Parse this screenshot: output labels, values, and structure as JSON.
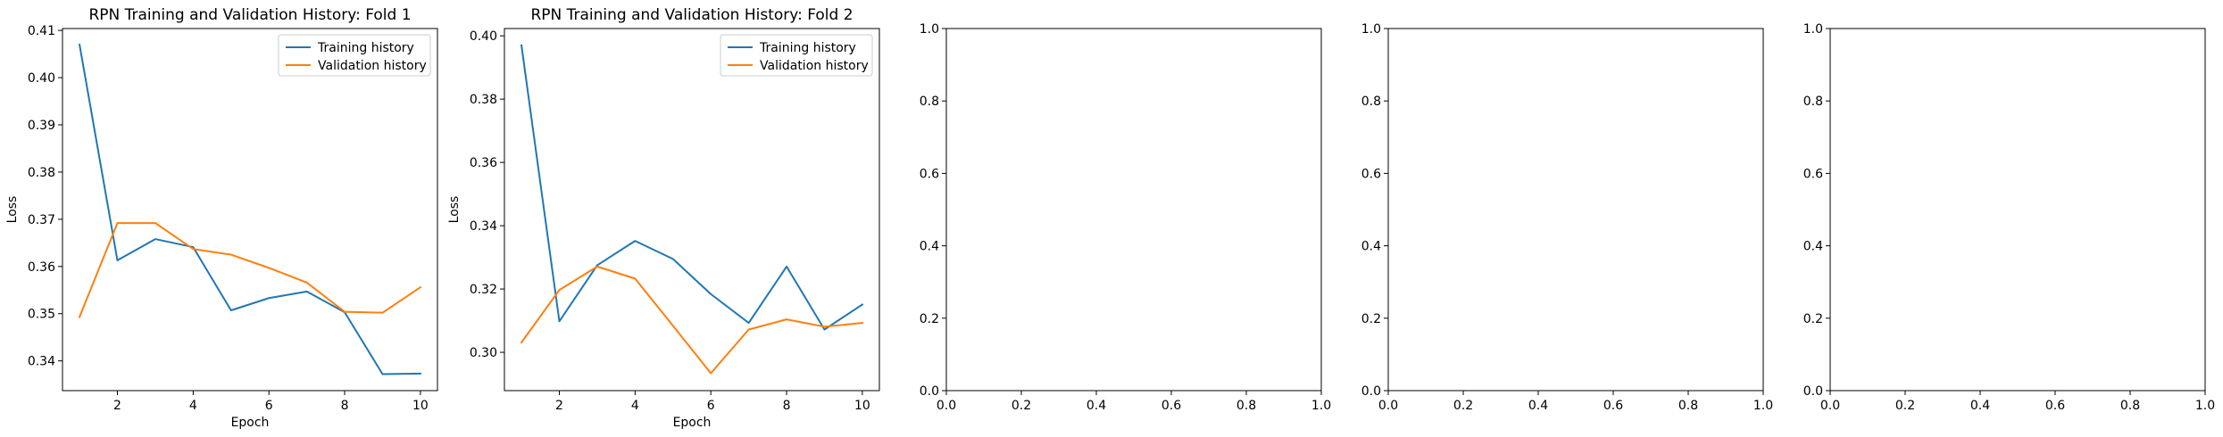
{
  "colors": {
    "training": "#1f77b4",
    "validation": "#ff7f0e"
  },
  "chart_data": [
    {
      "type": "line",
      "title": "RPN Training and Validation History: Fold 1",
      "xlabel": "Epoch",
      "ylabel": "Loss",
      "x": [
        1,
        2,
        3,
        4,
        5,
        6,
        7,
        8,
        9,
        10
      ],
      "xlim": [
        0.55,
        10.45
      ],
      "ylim": [
        0.3337,
        0.4104
      ],
      "xticks": [
        2,
        4,
        6,
        8,
        10
      ],
      "yticks": [
        0.34,
        0.35,
        0.36,
        0.37,
        0.38,
        0.39,
        0.4,
        0.41
      ],
      "ytick_labels": [
        "0.34",
        "0.35",
        "0.36",
        "0.37",
        "0.38",
        "0.39",
        "0.40",
        "0.41"
      ],
      "legend": "top-right",
      "grid": false,
      "series": [
        {
          "name": "Training history",
          "color": "#1f77b4",
          "values": [
            0.407,
            0.3613,
            0.3658,
            0.3641,
            0.3507,
            0.3533,
            0.3547,
            0.3503,
            0.3372,
            0.3373
          ]
        },
        {
          "name": "Validation history",
          "color": "#ff7f0e",
          "values": [
            0.3493,
            0.3692,
            0.3692,
            0.3637,
            0.3625,
            0.3597,
            0.3566,
            0.3504,
            0.3502,
            0.3556
          ]
        }
      ]
    },
    {
      "type": "line",
      "title": "RPN Training and Validation History: Fold 2",
      "xlabel": "Epoch",
      "ylabel": "Loss",
      "x": [
        1,
        2,
        3,
        4,
        5,
        6,
        7,
        8,
        9,
        10
      ],
      "xlim": [
        0.55,
        10.45
      ],
      "ylim": [
        0.2879,
        0.4023
      ],
      "xticks": [
        2,
        4,
        6,
        8,
        10
      ],
      "yticks": [
        0.3,
        0.32,
        0.34,
        0.36,
        0.38,
        0.4
      ],
      "ytick_labels": [
        "0.30",
        "0.32",
        "0.34",
        "0.36",
        "0.38",
        "0.40"
      ],
      "legend": "top-right",
      "grid": false,
      "series": [
        {
          "name": "Training history",
          "color": "#1f77b4",
          "values": [
            0.397,
            0.3098,
            0.3275,
            0.3352,
            0.3295,
            0.3184,
            0.3093,
            0.3271,
            0.3072,
            0.3151
          ]
        },
        {
          "name": "Validation history",
          "color": "#ff7f0e",
          "values": [
            0.3031,
            0.3197,
            0.3271,
            0.3233,
            0.3084,
            0.2934,
            0.3072,
            0.3104,
            0.3081,
            0.3093
          ]
        }
      ]
    },
    {
      "type": "line",
      "title": "",
      "xlabel": "",
      "ylabel": "",
      "xlim": [
        0,
        1
      ],
      "ylim": [
        0,
        1
      ],
      "xticks": [
        0.0,
        0.2,
        0.4,
        0.6,
        0.8,
        1.0
      ],
      "xtick_labels": [
        "0.0",
        "0.2",
        "0.4",
        "0.6",
        "0.8",
        "1.0"
      ],
      "yticks": [
        0.0,
        0.2,
        0.4,
        0.6,
        0.8,
        1.0
      ],
      "ytick_labels": [
        "0.0",
        "0.2",
        "0.4",
        "0.6",
        "0.8",
        "1.0"
      ],
      "series": []
    },
    {
      "type": "line",
      "title": "",
      "xlabel": "",
      "ylabel": "",
      "xlim": [
        0,
        1
      ],
      "ylim": [
        0,
        1
      ],
      "xticks": [
        0.0,
        0.2,
        0.4,
        0.6,
        0.8,
        1.0
      ],
      "xtick_labels": [
        "0.0",
        "0.2",
        "0.4",
        "0.6",
        "0.8",
        "1.0"
      ],
      "yticks": [
        0.0,
        0.2,
        0.4,
        0.6,
        0.8,
        1.0
      ],
      "ytick_labels": [
        "0.0",
        "0.2",
        "0.4",
        "0.6",
        "0.8",
        "1.0"
      ],
      "series": []
    },
    {
      "type": "line",
      "title": "",
      "xlabel": "",
      "ylabel": "",
      "xlim": [
        0,
        1
      ],
      "ylim": [
        0,
        1
      ],
      "xticks": [
        0.0,
        0.2,
        0.4,
        0.6,
        0.8,
        1.0
      ],
      "xtick_labels": [
        "0.0",
        "0.2",
        "0.4",
        "0.6",
        "0.8",
        "1.0"
      ],
      "yticks": [
        0.0,
        0.2,
        0.4,
        0.6,
        0.8,
        1.0
      ],
      "ytick_labels": [
        "0.0",
        "0.2",
        "0.4",
        "0.6",
        "0.8",
        "1.0"
      ],
      "series": []
    }
  ]
}
